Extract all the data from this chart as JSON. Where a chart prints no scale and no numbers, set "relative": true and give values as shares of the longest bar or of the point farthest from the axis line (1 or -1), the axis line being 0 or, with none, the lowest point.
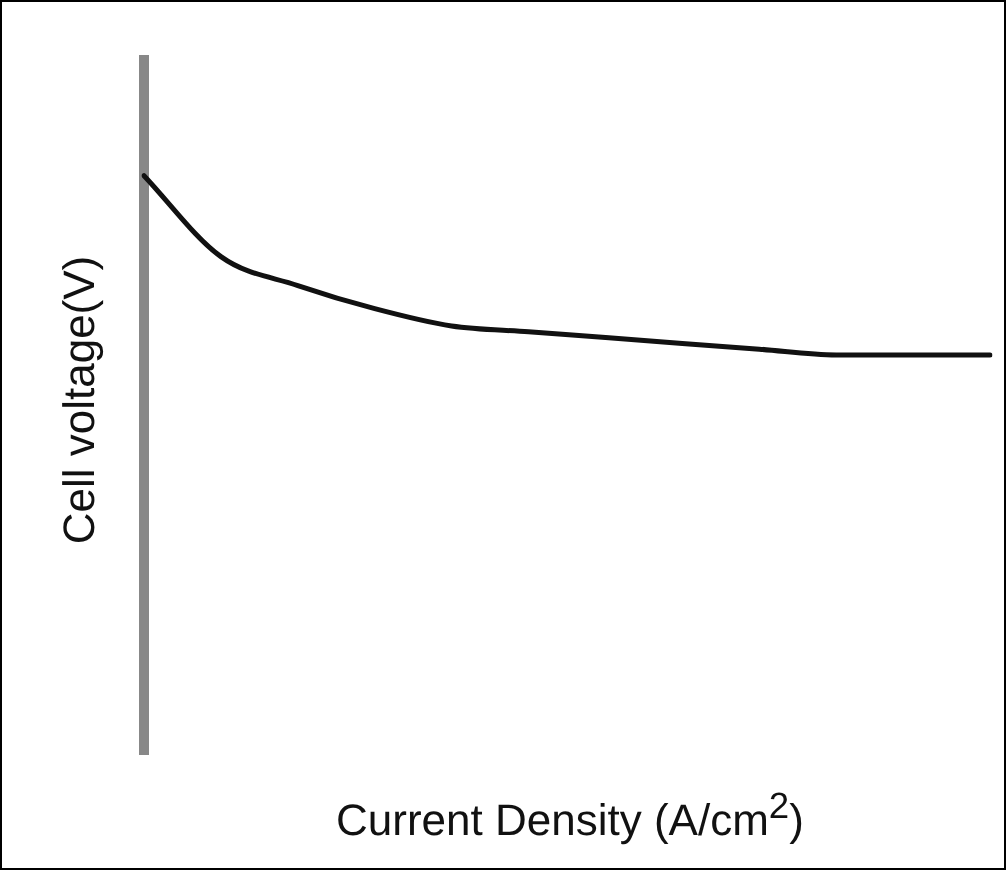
{
  "chart_data": {
    "type": "line",
    "relative": true,
    "xlabel": "Current Density (A/cm$^{2}$)",
    "ylabel": "Cell voltage(V)",
    "color": "#111111",
    "categories": [
      null,
      null,
      null,
      null,
      null,
      null,
      null,
      null,
      null,
      null,
      null,
      null
    ],
    "values": [
      1.0,
      0.86,
      0.81,
      0.77,
      0.74,
      0.73,
      0.72,
      0.71,
      0.7,
      0.69,
      0.69,
      0.69
    ],
    "grid": false,
    "legend": false,
    "marker": "none",
    "line_style": "solid"
  }
}
